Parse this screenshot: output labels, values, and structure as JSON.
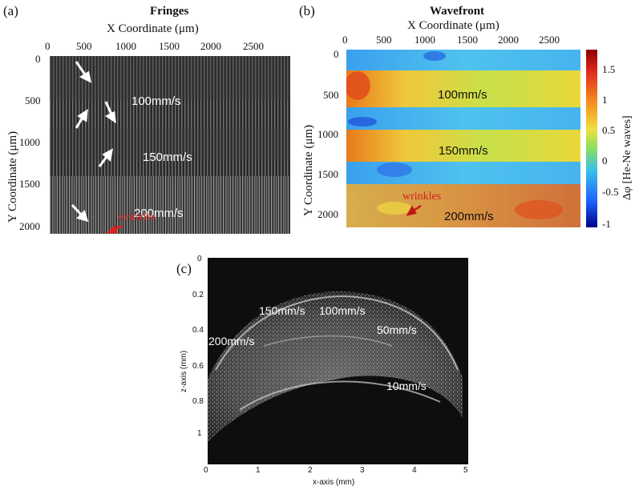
{
  "panels": {
    "a": {
      "label": "(a)",
      "title": "Fringes",
      "xlabel": "X Coordinate (μm)",
      "ylabel": "Y Coordinate (μm)",
      "xticks": [
        "0",
        "500",
        "1000",
        "1500",
        "2000",
        "2500"
      ],
      "yticks": [
        "0",
        "500",
        "1000",
        "1500",
        "2000"
      ],
      "speed_labels": [
        "100mm/s",
        "150mm/s",
        "200mm/s"
      ],
      "wrinkles_label": "wrinkles"
    },
    "b": {
      "label": "(b)",
      "title": "Wavefront",
      "xlabel": "X Coordinate (μm)",
      "ylabel": "Y Coordinate (μm)",
      "xticks": [
        "0",
        "500",
        "1000",
        "1500",
        "2000",
        "2500"
      ],
      "yticks": [
        "0",
        "500",
        "1000",
        "1500",
        "2000"
      ],
      "colorbar_ticks": [
        "1.5",
        "1",
        "0.5",
        "0",
        "-0.5",
        "-1"
      ],
      "colorbar_label": "Δφ [He-Ne waves]",
      "speed_labels": [
        "100mm/s",
        "150mm/s",
        "200mm/s"
      ],
      "wrinkles_label": "wrinkles",
      "colormap": [
        "#00008b",
        "#1565ff",
        "#3fb6f0",
        "#a8e05a",
        "#f5e23a",
        "#f5a020",
        "#e0301c",
        "#a00000"
      ]
    },
    "c": {
      "label": "(c)",
      "xlabel": "x-axis (mm)",
      "ylabel": "z-axis (mm)",
      "xticks": [
        "0",
        "1",
        "2",
        "3",
        "4",
        "5"
      ],
      "yticks": [
        "0",
        "0.2",
        "0.4",
        "0.6",
        "0.8",
        "1"
      ],
      "speed_labels": [
        "150mm/s",
        "100mm/s",
        "50mm/s",
        "200mm/s",
        "10mm/s"
      ]
    }
  }
}
